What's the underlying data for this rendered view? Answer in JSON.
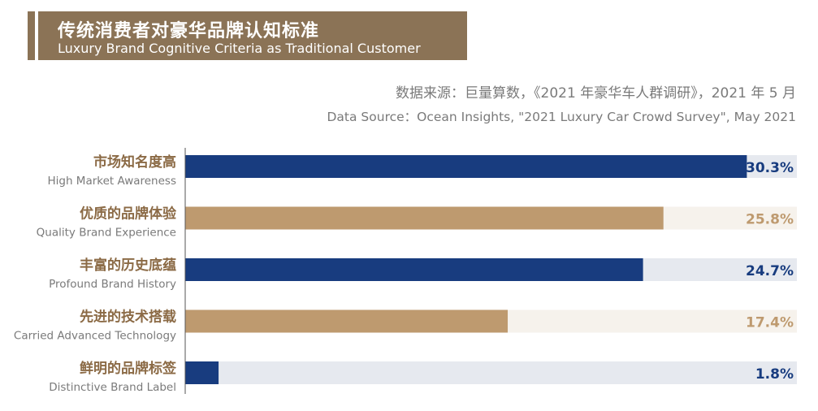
{
  "header": {
    "title_zh": "传统消费者对豪华品牌认知标准",
    "title_en": "Luxury Brand Cognitive Criteria as Traditional Customer"
  },
  "source": {
    "zh": "数据来源：巨量算数，《2021 年豪华车人群调研》，2021 年 5 月",
    "en": "Data Source：Ocean Insights, \"2021 Luxury Car Crowd Survey\", May 2021"
  },
  "colors": {
    "title_bg": "#8b7356",
    "navy": "#183c7f",
    "tan": "#be9a6f",
    "navy_track": "#e6e9ef",
    "tan_track": "#f6f2ec",
    "category_text": "#8b6a45",
    "muted_text": "#7a7a7a"
  },
  "chart_data": {
    "type": "bar",
    "orientation": "horizontal",
    "title": "传统消费者对豪华品牌认知标准",
    "subtitle": "Luxury Brand Cognitive Criteria as Traditional Customer",
    "unit": "%",
    "xlim": [
      0,
      33
    ],
    "categories": [
      {
        "zh": "市场知名度高",
        "en": "High Market Awareness",
        "value": 30.3,
        "label": "30.3%",
        "color": "navy"
      },
      {
        "zh": "优质的品牌体验",
        "en": "Quality Brand Experience",
        "value": 25.8,
        "label": "25.8%",
        "color": "tan"
      },
      {
        "zh": "丰富的历史底蕴",
        "en": "Profound Brand History",
        "value": 24.7,
        "label": "24.7%",
        "color": "navy"
      },
      {
        "zh": "先进的技术搭载",
        "en": "Carried Advanced Technology",
        "value": 17.4,
        "label": "17.4%",
        "color": "tan"
      },
      {
        "zh": "鲜明的品牌标签",
        "en": "Distinctive Brand Label",
        "value": 1.8,
        "label": "1.8%",
        "color": "navy"
      }
    ]
  }
}
